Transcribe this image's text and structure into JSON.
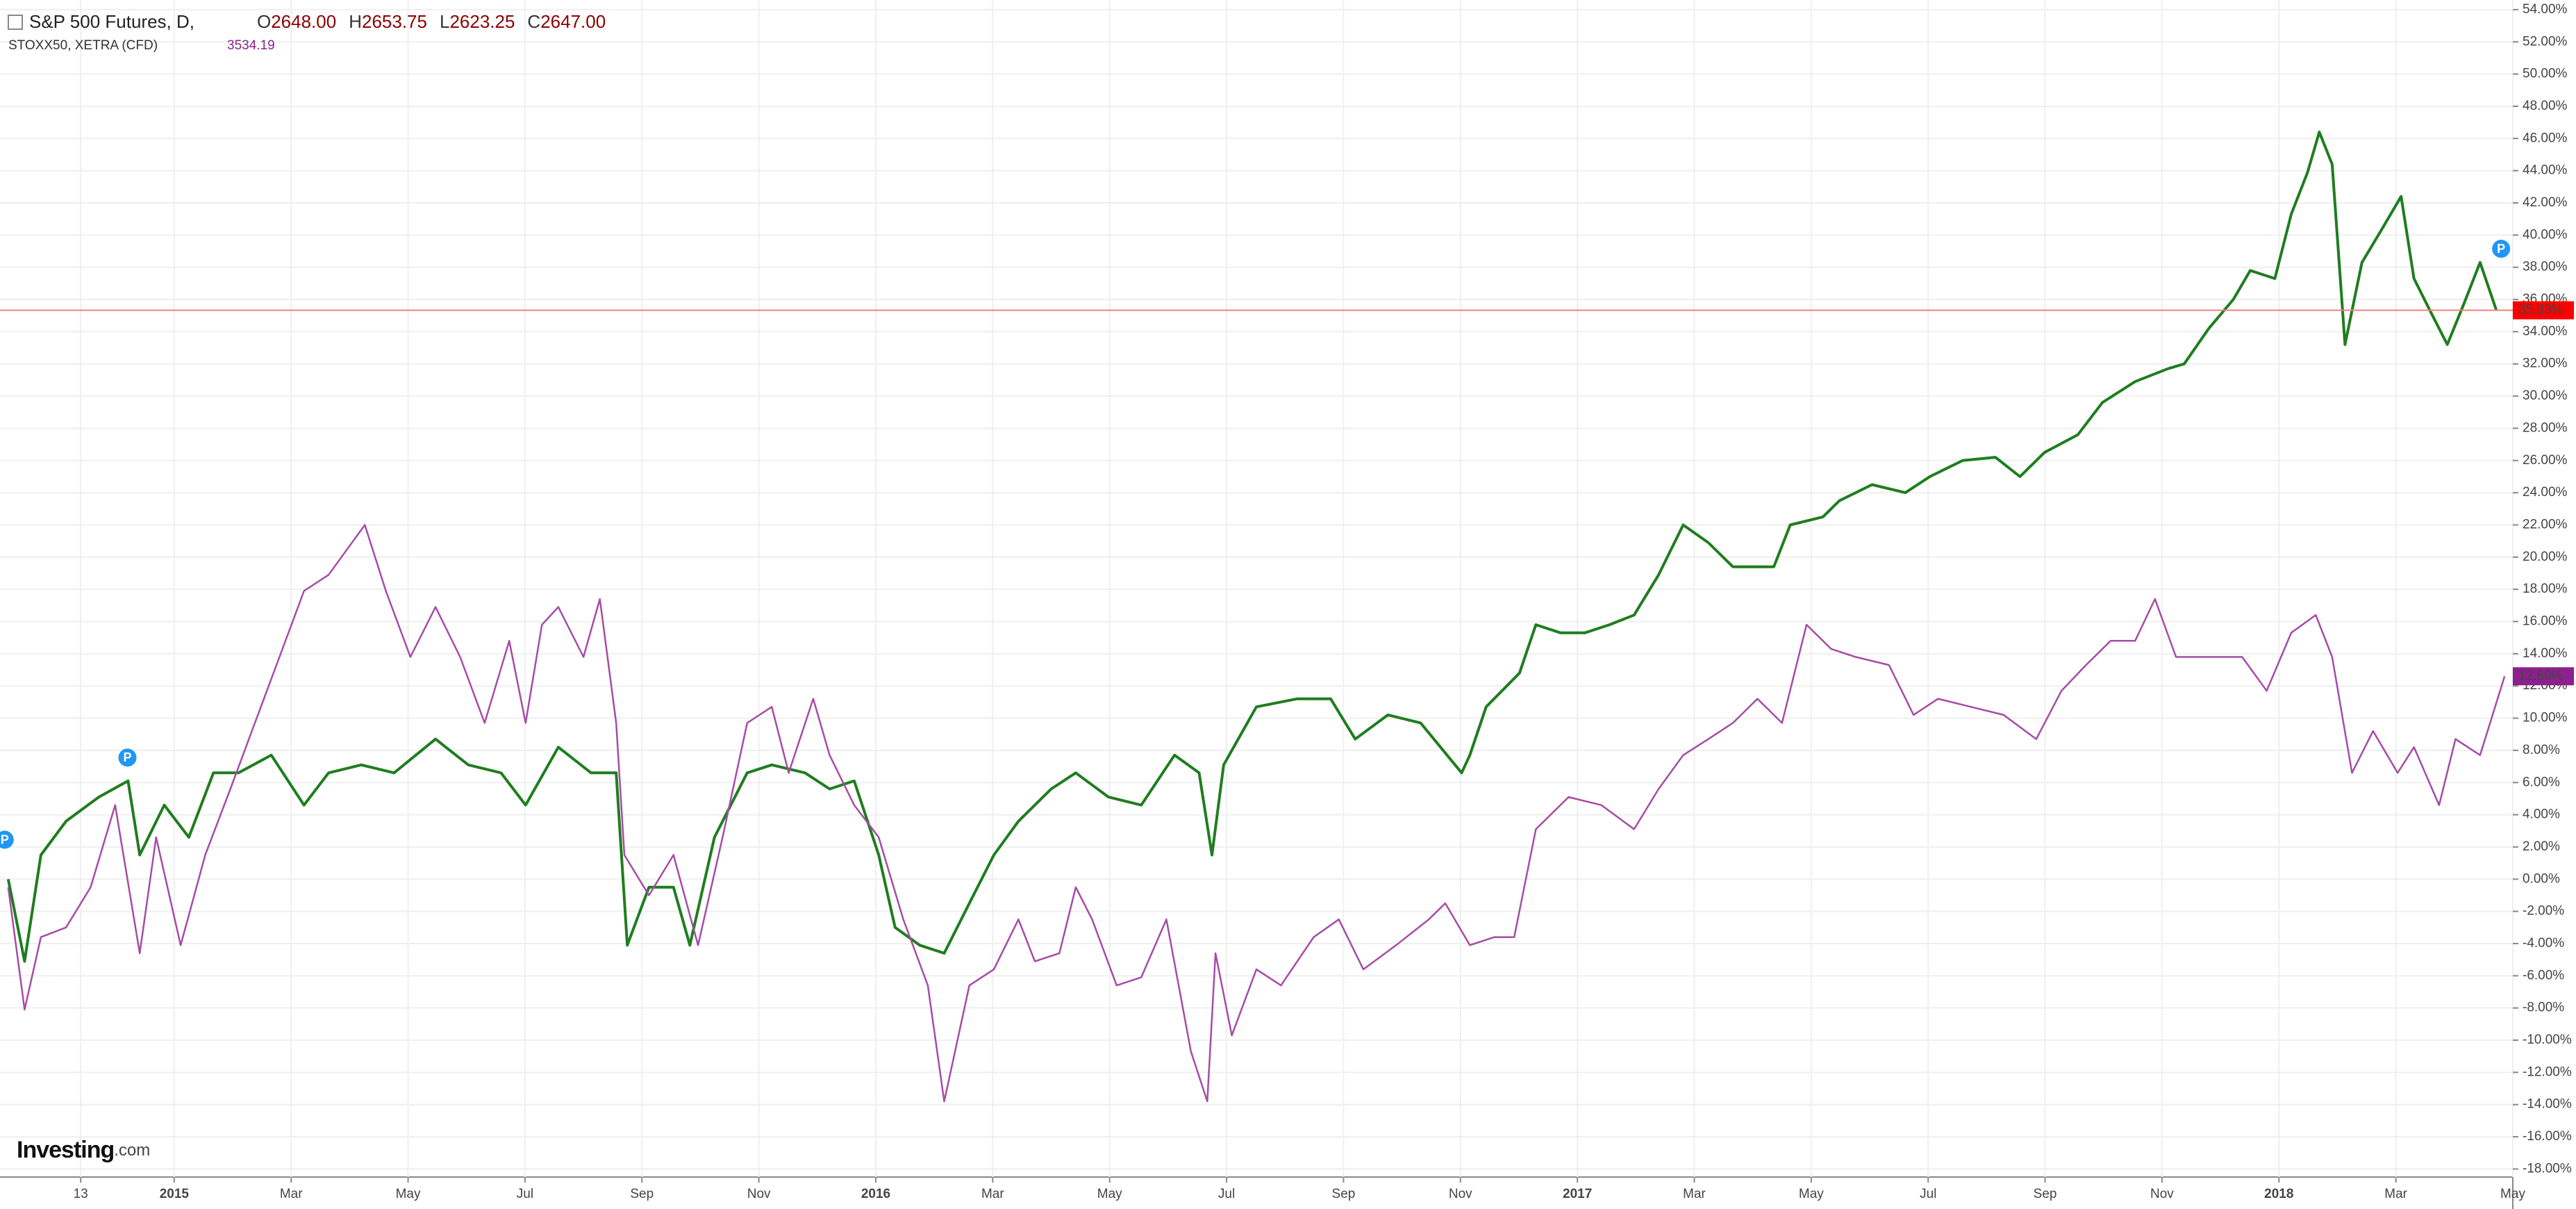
{
  "chart_data": {
    "type": "line",
    "header": {
      "main_ohlc": [
        {
          "key": "O",
          "text": "2648.00"
        },
        {
          "key": "H",
          "text": "2653.75"
        },
        {
          "key": "L",
          "text": "2623.25"
        },
        {
          "key": "C",
          "text": "2647.00"
        }
      ],
      "compare_value": "3534.19"
    },
    "logo": [
      "Investing",
      ".com"
    ],
    "xlim": [
      -2.98,
      40
    ],
    "ylim": [
      -18.5,
      54.6
    ],
    "grid": true,
    "xticks": [
      {
        "value": -1.6,
        "label": "13"
      },
      {
        "value": 0,
        "label": "2015"
      },
      {
        "value": 2,
        "label": "Mar"
      },
      {
        "value": 4,
        "label": "May"
      },
      {
        "value": 6,
        "label": "Jul"
      },
      {
        "value": 8,
        "label": "Sep"
      },
      {
        "value": 10,
        "label": "Nov"
      },
      {
        "value": 12,
        "label": "2016"
      },
      {
        "value": 14,
        "label": "Mar"
      },
      {
        "value": 16,
        "label": "May"
      },
      {
        "value": 18,
        "label": "Jul"
      },
      {
        "value": 20,
        "label": "Sep"
      },
      {
        "value": 22,
        "label": "Nov"
      },
      {
        "value": 24,
        "label": "2017"
      },
      {
        "value": 26,
        "label": "Mar"
      },
      {
        "value": 28,
        "label": "May"
      },
      {
        "value": 30,
        "label": "Jul"
      },
      {
        "value": 32,
        "label": "Sep"
      },
      {
        "value": 34,
        "label": "Nov"
      },
      {
        "value": 36,
        "label": "2018"
      },
      {
        "value": 38,
        "label": "Mar"
      },
      {
        "value": 40,
        "label": "May"
      }
    ],
    "yticks": [
      {
        "value": 54,
        "label": "54.00%"
      },
      {
        "value": 52,
        "label": "52.00%"
      },
      {
        "value": 50,
        "label": "50.00%"
      },
      {
        "value": 48,
        "label": "48.00%"
      },
      {
        "value": 46,
        "label": "46.00%"
      },
      {
        "value": 44,
        "label": "44.00%"
      },
      {
        "value": 42,
        "label": "42.00%"
      },
      {
        "value": 40,
        "label": "40.00%"
      },
      {
        "value": 38,
        "label": "38.00%"
      },
      {
        "value": 36,
        "label": "36.00%"
      },
      {
        "value": 34,
        "label": "34.00%"
      },
      {
        "value": 32,
        "label": "32.00%"
      },
      {
        "value": 30,
        "label": "30.00%"
      },
      {
        "value": 28,
        "label": "28.00%"
      },
      {
        "value": 26,
        "label": "26.00%"
      },
      {
        "value": 24,
        "label": "24.00%"
      },
      {
        "value": 22,
        "label": "22.00%"
      },
      {
        "value": 20,
        "label": "20.00%"
      },
      {
        "value": 18,
        "label": "18.00%"
      },
      {
        "value": 16,
        "label": "16.00%"
      },
      {
        "value": 14,
        "label": "14.00%"
      },
      {
        "value": 12,
        "label": "12.00%"
      },
      {
        "value": 10,
        "label": "10.00%"
      },
      {
        "value": 8,
        "label": "8.00%"
      },
      {
        "value": 6,
        "label": "6.00%"
      },
      {
        "value": 4,
        "label": "4.00%"
      },
      {
        "value": 2,
        "label": "2.00%"
      },
      {
        "value": 0,
        "label": "0.00%"
      },
      {
        "value": -2,
        "label": "-2.00%"
      },
      {
        "value": -4,
        "label": "-4.00%"
      },
      {
        "value": -6,
        "label": "-6.00%"
      },
      {
        "value": -8,
        "label": "-8.00%"
      },
      {
        "value": -10,
        "label": "-10.00%"
      },
      {
        "value": -12,
        "label": "-12.00%"
      },
      {
        "value": -14,
        "label": "-14.00%"
      },
      {
        "value": -16,
        "label": "-16.00%"
      },
      {
        "value": -18,
        "label": "-18.00%"
      }
    ],
    "series": [
      {
        "name": "S&P 500 Futures, D,",
        "color": "#1f7d1f",
        "last_color": "#ff0000",
        "last_label": "35.33%",
        "x": [
          -2.84,
          -2.56,
          -2.28,
          -1.85,
          -1.29,
          -0.79,
          -0.59,
          -0.17,
          0.25,
          0.67,
          1.1,
          1.66,
          2.22,
          2.64,
          3.2,
          3.76,
          4.47,
          5.03,
          5.59,
          6.01,
          6.57,
          7.13,
          7.56,
          7.75,
          8.12,
          8.54,
          8.82,
          9.24,
          9.8,
          10.22,
          10.79,
          11.21,
          11.63,
          12.05,
          12.33,
          12.75,
          13.17,
          13.6,
          14.02,
          14.44,
          15.0,
          15.42,
          15.98,
          16.54,
          17.11,
          17.53,
          17.75,
          17.95,
          18.51,
          19.21,
          19.78,
          20.2,
          20.76,
          21.32,
          22.02,
          22.16,
          22.44,
          23.01,
          23.29,
          23.71,
          24.13,
          24.55,
          24.97,
          25.39,
          25.81,
          26.24,
          26.66,
          27.36,
          27.64,
          28.2,
          28.48,
          29.04,
          29.61,
          30.03,
          30.59,
          31.15,
          31.57,
          31.99,
          32.56,
          32.98,
          33.54,
          34.1,
          34.38,
          34.8,
          35.22,
          35.51,
          35.93,
          36.21,
          36.49,
          36.69,
          36.91,
          37.13,
          37.42,
          37.75,
          38.09,
          38.31,
          38.6,
          38.88,
          39.16,
          39.44,
          39.72
        ],
        "values": [
          0.0,
          -5.1,
          1.5,
          3.6,
          5.1,
          6.1,
          1.5,
          4.6,
          2.6,
          6.6,
          6.6,
          7.7,
          4.6,
          6.6,
          7.1,
          6.6,
          8.7,
          7.1,
          6.6,
          4.6,
          8.2,
          6.6,
          6.6,
          -4.1,
          -0.5,
          -0.5,
          -4.1,
          2.6,
          6.6,
          7.1,
          6.6,
          5.6,
          6.1,
          1.5,
          -3.0,
          -4.1,
          -4.6,
          -1.5,
          1.5,
          3.6,
          5.6,
          6.6,
          5.1,
          4.6,
          7.7,
          6.6,
          1.5,
          7.1,
          10.7,
          11.2,
          11.2,
          8.7,
          10.2,
          9.7,
          6.6,
          7.7,
          10.7,
          12.8,
          15.8,
          15.3,
          15.3,
          15.8,
          16.4,
          18.9,
          22.0,
          20.9,
          19.4,
          19.4,
          22.0,
          22.5,
          23.5,
          24.5,
          24.0,
          25.0,
          26.0,
          26.2,
          25.0,
          26.5,
          27.6,
          29.6,
          30.9,
          31.7,
          32.0,
          34.2,
          36.0,
          37.8,
          37.3,
          41.3,
          43.9,
          46.4,
          44.4,
          33.2,
          38.3,
          40.3,
          42.4,
          37.3,
          35.2,
          33.2,
          35.7,
          38.3,
          35.33
        ]
      },
      {
        "name": "STOXX50, XETRA (CFD)",
        "color": "#a64ca6",
        "last_color": "#8e1f8e",
        "last_label": "12.60%",
        "x": [
          -2.84,
          -2.56,
          -2.28,
          -1.85,
          -1.43,
          -1.01,
          -0.59,
          -0.31,
          0.11,
          0.53,
          0.96,
          1.38,
          1.8,
          2.22,
          2.64,
          3.26,
          3.62,
          4.04,
          4.47,
          4.89,
          5.31,
          5.73,
          6.01,
          6.29,
          6.57,
          7.0,
          7.28,
          7.56,
          7.7,
          8.12,
          8.54,
          8.96,
          9.38,
          9.8,
          10.22,
          10.51,
          10.93,
          11.21,
          11.63,
          12.05,
          12.47,
          12.89,
          13.17,
          13.6,
          14.02,
          14.44,
          14.72,
          15.14,
          15.42,
          15.7,
          16.12,
          16.54,
          16.97,
          17.39,
          17.67,
          17.81,
          18.09,
          18.51,
          18.93,
          19.49,
          19.92,
          20.34,
          20.9,
          21.46,
          21.74,
          22.16,
          22.58,
          22.92,
          23.29,
          23.85,
          24.41,
          24.97,
          25.39,
          25.81,
          26.24,
          26.66,
          27.08,
          27.5,
          27.92,
          28.34,
          28.76,
          29.33,
          29.75,
          30.17,
          30.73,
          31.29,
          31.85,
          32.28,
          32.7,
          33.12,
          33.54,
          33.88,
          34.24,
          34.8,
          35.37,
          35.79,
          36.21,
          36.63,
          36.91,
          37.25,
          37.61,
          38.03,
          38.31,
          38.74,
          39.02,
          39.44,
          39.86
        ],
        "values": [
          -0.5,
          -8.1,
          -3.6,
          -3.0,
          -0.5,
          4.6,
          -4.6,
          2.6,
          -4.1,
          1.5,
          5.6,
          9.7,
          13.8,
          17.9,
          18.9,
          22.0,
          17.9,
          13.8,
          16.9,
          13.8,
          9.7,
          14.8,
          9.7,
          15.8,
          16.9,
          13.8,
          17.4,
          9.7,
          1.5,
          -1.0,
          1.5,
          -4.1,
          2.6,
          9.7,
          10.7,
          6.6,
          11.2,
          7.7,
          4.6,
          2.6,
          -2.5,
          -6.6,
          -13.8,
          -6.6,
          -5.6,
          -2.5,
          -5.1,
          -4.6,
          -0.5,
          -2.5,
          -6.6,
          -6.1,
          -2.5,
          -10.7,
          -13.8,
          -4.6,
          -9.7,
          -5.6,
          -6.6,
          -3.6,
          -2.5,
          -5.6,
          -4.1,
          -2.5,
          -1.5,
          -4.1,
          -3.6,
          -3.6,
          3.1,
          5.1,
          4.6,
          3.1,
          5.6,
          7.7,
          8.7,
          9.7,
          11.2,
          9.7,
          15.8,
          14.3,
          13.8,
          13.3,
          10.2,
          11.2,
          10.7,
          10.2,
          8.7,
          11.7,
          13.3,
          14.8,
          14.8,
          17.4,
          13.8,
          13.8,
          13.8,
          11.7,
          15.3,
          16.4,
          13.8,
          6.6,
          9.2,
          6.6,
          8.2,
          4.6,
          8.7,
          7.7,
          12.6
        ]
      }
    ],
    "event_markers": [
      {
        "label": "P",
        "x": -2.9,
        "value": 1.5
      },
      {
        "label": "P",
        "x": -0.8,
        "value": 6.6
      },
      {
        "label": "P",
        "x": 39.8,
        "value": 38.2
      }
    ]
  }
}
